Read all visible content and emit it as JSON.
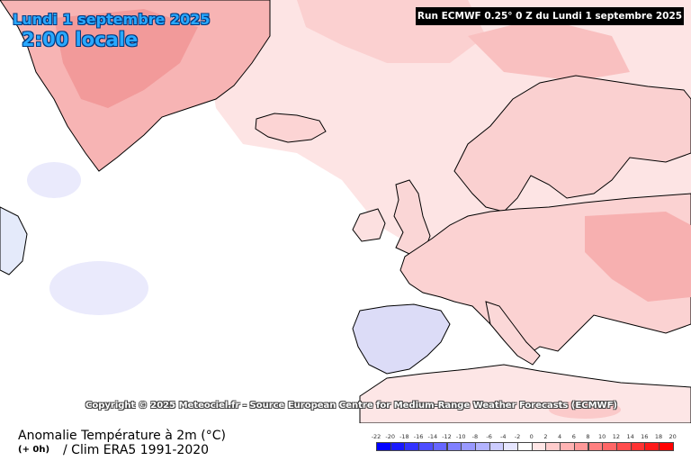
{
  "header": {
    "date": "Lundi 1 septembre 2025",
    "local_time": "2:00 locale",
    "run_banner": "Run ECMWF 0.25° 0 Z du Lundi 1 septembre 2025"
  },
  "map": {
    "copyright": "Copyright © 2025 Meteociel.fr - Source European Centre for Medium-Range Weather Forecasts (ECMWF)",
    "ocean_color": "#ffffff",
    "land_outline_color": "#000000",
    "warm_anomaly_color": "#f9b8b8",
    "strong_warm_color": "#f28a8a",
    "cool_anomaly_color": "#c8c8f5"
  },
  "footer": {
    "title": "Anomalie Température à 2m (°C)",
    "run_offset": "(+ 0h)",
    "climatology": "/ Clim ERA5 1991-2020"
  },
  "legend": {
    "ticks": [
      "-22",
      "-20",
      "-18",
      "-16",
      "-14",
      "-12",
      "-10",
      "-8",
      "-6",
      "-4",
      "-2",
      "0",
      "2",
      "4",
      "6",
      "8",
      "10",
      "12",
      "14",
      "16",
      "18",
      "20"
    ],
    "colors": [
      "#0000ff",
      "#1a1aff",
      "#3333ff",
      "#4d4dff",
      "#6666ff",
      "#8080ff",
      "#9999ff",
      "#b3b3ff",
      "#ccccff",
      "#e6e6ff",
      "#ffffff",
      "#ffe6e6",
      "#ffcccc",
      "#ffb3b3",
      "#ff9999",
      "#ff8080",
      "#ff6666",
      "#ff4d4d",
      "#ff3333",
      "#ff1a1a",
      "#ff0000"
    ]
  }
}
